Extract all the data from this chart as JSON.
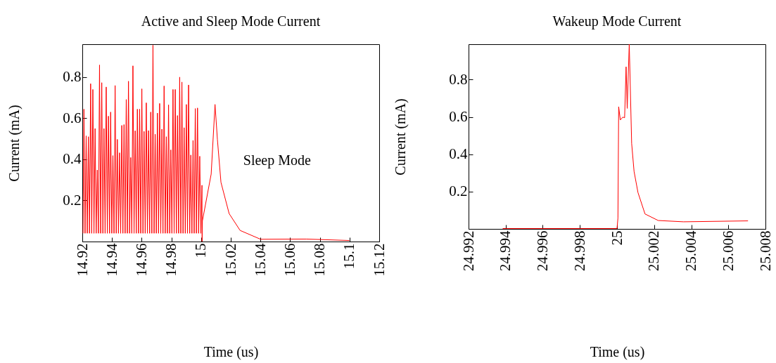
{
  "chart_data": [
    {
      "type": "line",
      "title": "Active and Sleep Mode Current",
      "xlabel": "Time (us)",
      "ylabel": "Current (mA)",
      "x": [
        14.9205,
        14.9211,
        14.92185,
        14.9226,
        14.92335,
        14.9241,
        14.92485,
        14.9256,
        14.92635,
        14.9271,
        14.92785,
        14.9286,
        14.92935,
        14.9301,
        14.93085,
        14.9316,
        14.93235,
        14.9331,
        14.93385,
        14.9346,
        14.93535,
        14.9361,
        14.93685,
        14.9376,
        14.93835,
        14.9391,
        14.93985,
        14.9406,
        14.94135,
        14.9421,
        14.94285,
        14.9436,
        14.94435,
        14.9451,
        14.94585,
        14.9466,
        14.94735,
        14.9481,
        14.94885,
        14.9496,
        14.95035,
        14.9511,
        14.95185,
        14.9526,
        14.95335,
        14.9541,
        14.95485,
        14.9556,
        14.95635,
        14.9571,
        14.95785,
        14.9586,
        14.95935,
        14.9601,
        14.96085,
        14.9616,
        14.96235,
        14.9631,
        14.96385,
        14.9646,
        14.96535,
        14.9661,
        14.96685,
        14.9676,
        14.96835,
        14.9691,
        14.96985,
        14.9706,
        14.97135,
        14.9721,
        14.97285,
        14.9736,
        14.97435,
        14.9751,
        14.97585,
        14.9766,
        14.97735,
        14.9781,
        14.97885,
        14.9796,
        14.98035,
        14.9811,
        14.98185,
        14.9826,
        14.98335,
        14.9841,
        14.98485,
        14.9856,
        14.98635,
        14.9871,
        14.98785,
        14.9886,
        14.98935,
        14.9901,
        14.99085,
        14.9916,
        14.99235,
        14.9931,
        14.99385,
        14.9946,
        14.99535,
        14.9961,
        14.99685,
        14.9976,
        14.99835,
        14.9991,
        14.99985,
        15.0006,
        15.0007,
        15.0009,
        15.0068,
        15.0094,
        15.011,
        15.0134,
        15.0189,
        15.0263,
        15.0401,
        15.0708,
        15.0999
      ],
      "series": [
        {
          "color": "#ff0000",
          "values": [
            0.04,
            0.644,
            0.04,
            0.514,
            0.04,
            0.51,
            0.04,
            0.768,
            0.04,
            0.74,
            0.04,
            0.55,
            0.04,
            0.348,
            0.04,
            0.859,
            0.04,
            0.773,
            0.04,
            0.55,
            0.04,
            0.752,
            0.04,
            0.61,
            0.04,
            0.63,
            0.04,
            0.418,
            0.04,
            0.759,
            0.04,
            0.497,
            0.04,
            0.432,
            0.04,
            0.565,
            0.04,
            0.569,
            0.04,
            0.691,
            0.04,
            0.78,
            0.04,
            0.409,
            0.04,
            0.855,
            0.04,
            0.539,
            0.04,
            0.644,
            0.04,
            0.644,
            0.04,
            0.743,
            0.04,
            0.536,
            0.04,
            0.675,
            0.04,
            0.54,
            0.04,
            0.63,
            0.04,
            0.955,
            0.04,
            0.522,
            0.04,
            0.625,
            0.04,
            0.672,
            0.04,
            0.547,
            0.04,
            0.757,
            0.04,
            0.51,
            0.04,
            0.665,
            0.04,
            0.446,
            0.04,
            0.74,
            0.04,
            0.74,
            0.04,
            0.613,
            0.04,
            0.8,
            0.04,
            0.776,
            0.04,
            0.554,
            0.04,
            0.667,
            0.04,
            0.762,
            0.04,
            0.421,
            0.04,
            0.492,
            0.04,
            0.647,
            0.04,
            0.65,
            0.04,
            0.415,
            0.04,
            0.274,
            0.0,
            0.1,
            0.328,
            0.667,
            0.497,
            0.288,
            0.136,
            0.054,
            0.011,
            0.012,
            0.005
          ]
        }
      ],
      "xlim": [
        14.92,
        15.12
      ],
      "ylim": [
        0,
        0.96
      ],
      "xticks": [
        14.92,
        14.94,
        14.96,
        14.98,
        15,
        15.02,
        15.04,
        15.06,
        15.08,
        15.1,
        15.12
      ],
      "yticks": [
        0.2,
        0.4,
        0.6,
        0.8
      ],
      "annotations": [
        "Sleep Mode"
      ]
    },
    {
      "type": "line",
      "title": "Wakeup Mode Current",
      "xlabel": "Time (us)",
      "ylabel": "Current (mA)",
      "x": [
        24.99384,
        25.0,
        25.00005,
        25.00009,
        25.00018,
        25.00031,
        25.00041,
        25.00049,
        25.00055,
        25.00066,
        25.00079,
        25.00092,
        25.00113,
        25.00151,
        25.00222,
        25.00358,
        25.00706
      ],
      "series": [
        {
          "color": "#ff0000",
          "values": [
            0.002,
            0.002,
            0.057,
            0.655,
            0.584,
            0.599,
            0.596,
            0.869,
            0.646,
            0.99,
            0.458,
            0.308,
            0.195,
            0.08,
            0.045,
            0.038,
            0.043
          ]
        }
      ],
      "xlim": [
        24.992,
        25.008
      ],
      "ylim": [
        0,
        0.99
      ],
      "xticks": [
        24.992,
        24.994,
        24.996,
        24.998,
        25,
        25.002,
        25.004,
        25.006,
        25.008
      ],
      "yticks": [
        0.2,
        0.4,
        0.6,
        0.8
      ]
    }
  ]
}
